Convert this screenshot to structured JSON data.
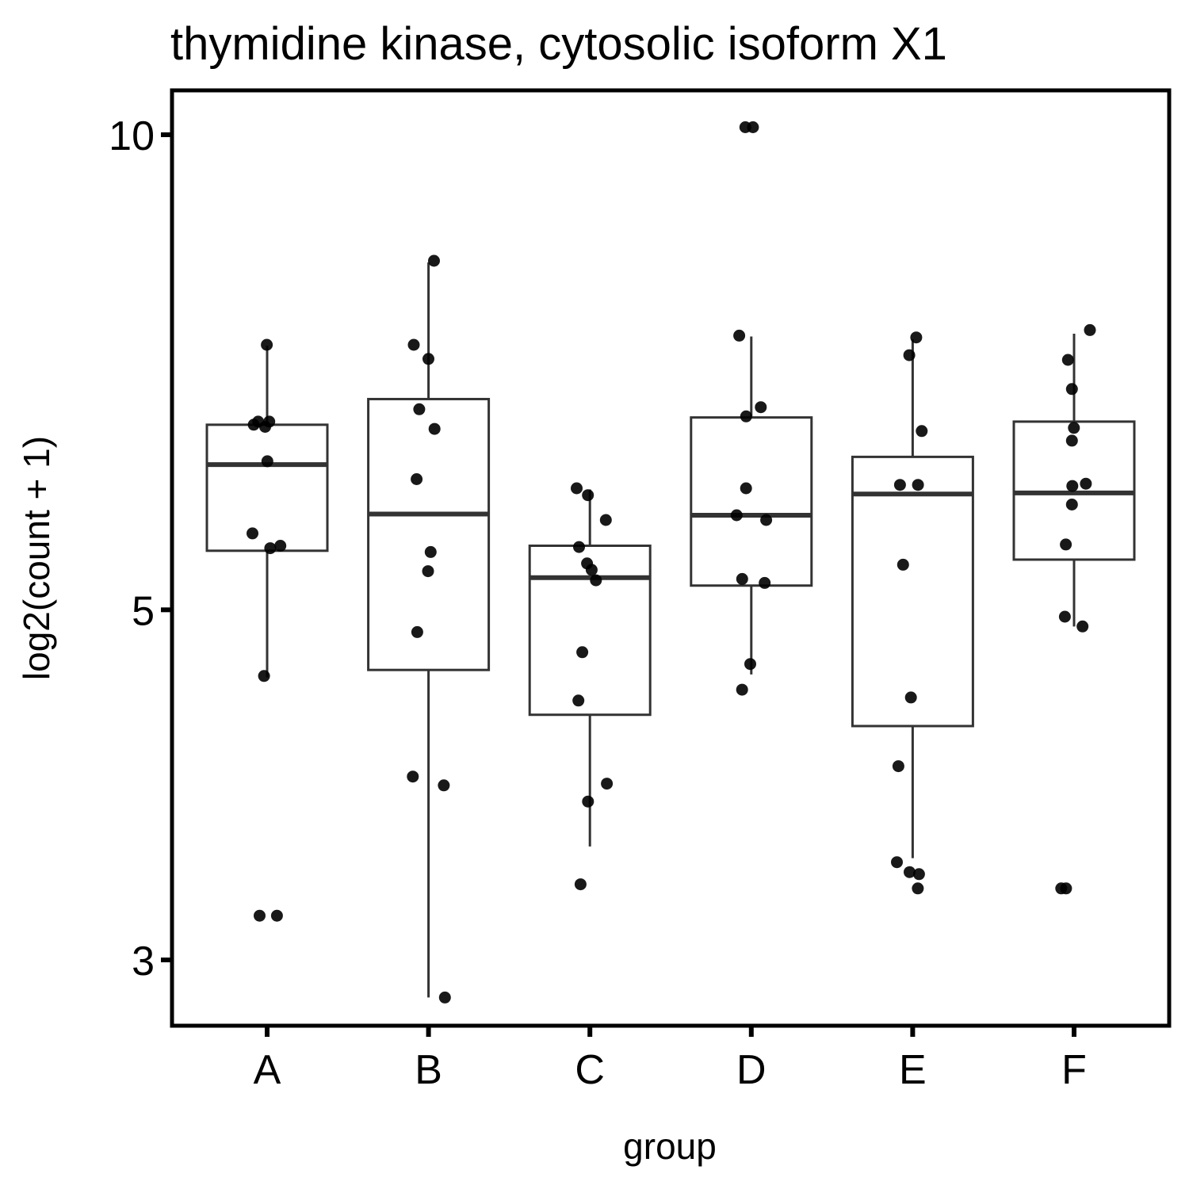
{
  "chart_data": {
    "type": "box",
    "title": "thymidine kinase, cytosolic isoform X1",
    "xlabel": "group",
    "ylabel": "log2(count + 1)",
    "y_scale": "log",
    "y_ticks": [
      3,
      5,
      10
    ],
    "ylim": [
      2.76,
      10.55
    ],
    "grid": false,
    "legend": "none",
    "categories": [
      "A",
      "B",
      "C",
      "D",
      "E",
      "F"
    ],
    "boxes": [
      {
        "group": "A",
        "q1": 5.45,
        "median": 6.18,
        "q3": 6.55,
        "whisker_low": 4.53,
        "whisker_high": 7.35
      },
      {
        "group": "B",
        "q1": 4.58,
        "median": 5.75,
        "q3": 6.8,
        "whisker_low": 2.84,
        "whisker_high": 8.3
      },
      {
        "group": "C",
        "q1": 4.29,
        "median": 5.24,
        "q3": 5.49,
        "whisker_low": 3.54,
        "whisker_high": 5.96
      },
      {
        "group": "D",
        "q1": 5.18,
        "median": 5.74,
        "q3": 6.62,
        "whisker_low": 4.55,
        "whisker_high": 7.45
      },
      {
        "group": "E",
        "q1": 4.22,
        "median": 5.92,
        "q3": 6.25,
        "whisker_low": 3.48,
        "whisker_high": 7.42
      },
      {
        "group": "F",
        "q1": 5.38,
        "median": 5.93,
        "q3": 6.58,
        "whisker_low": 4.88,
        "whisker_high": 7.48
      }
    ],
    "points": [
      {
        "group": "A",
        "values": [
          7.36,
          6.58,
          6.55,
          6.58,
          6.53,
          6.21,
          5.59,
          5.49,
          5.47,
          4.54,
          3.2,
          3.2
        ]
      },
      {
        "group": "B",
        "values": [
          8.32,
          7.36,
          7.21,
          6.7,
          6.51,
          6.05,
          5.44,
          5.29,
          4.84,
          3.92,
          3.87,
          2.84
        ]
      },
      {
        "group": "C",
        "values": [
          5.97,
          5.91,
          5.7,
          5.48,
          5.35,
          5.3,
          5.22,
          4.7,
          4.38,
          3.88,
          3.78,
          3.35
        ]
      },
      {
        "group": "D",
        "values": [
          10.11,
          10.11,
          7.46,
          6.72,
          6.63,
          5.97,
          5.74,
          5.7,
          5.23,
          5.2,
          4.62,
          4.45
        ]
      },
      {
        "group": "E",
        "values": [
          7.44,
          7.25,
          6.49,
          6.0,
          6.0,
          5.34,
          4.4,
          3.98,
          3.46,
          3.41,
          3.4,
          3.33
        ]
      },
      {
        "group": "F",
        "values": [
          7.52,
          7.2,
          6.9,
          6.52,
          6.4,
          6.01,
          5.99,
          5.83,
          5.5,
          4.95,
          4.88,
          3.33,
          3.33
        ]
      }
    ],
    "colors": {
      "box_stroke": "#333333",
      "point": "#000000",
      "panel_border": "#000000"
    }
  }
}
